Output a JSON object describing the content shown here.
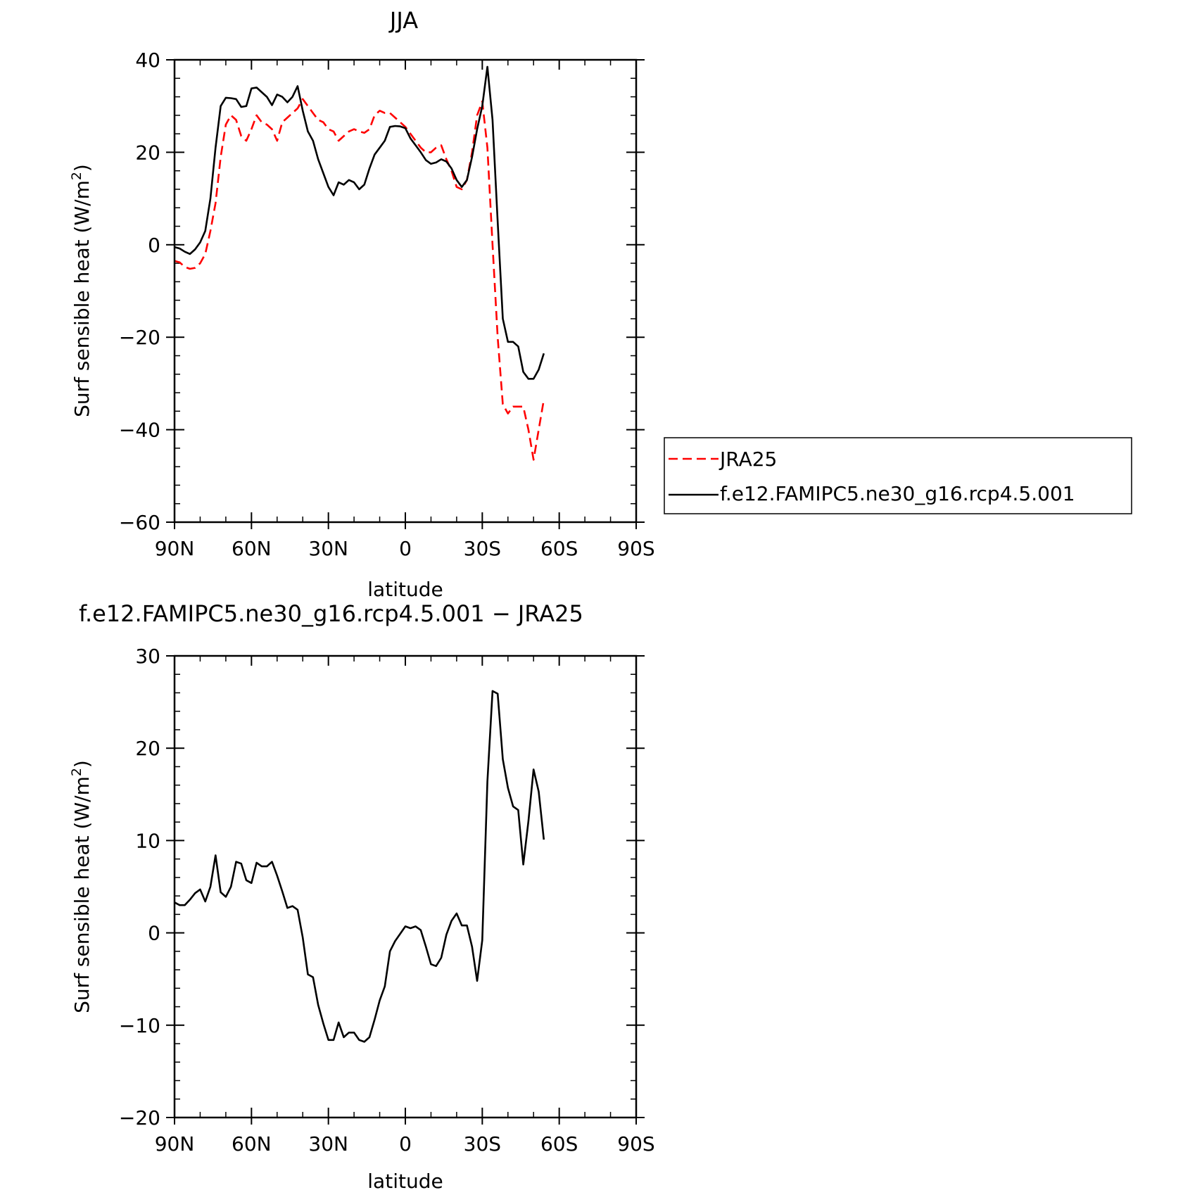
{
  "chart_data": [
    {
      "type": "line",
      "title": "JJA",
      "xlabel": "latitude",
      "ylabel_main": "Surf sensible heat (W/m",
      "ylabel_sup": "2",
      "ylabel_end": ")",
      "xlim": [
        90,
        -90
      ],
      "ylim": [
        -60,
        40
      ],
      "xticks": [
        90,
        60,
        30,
        0,
        -30,
        -60,
        -90
      ],
      "xtick_labels": [
        "90N",
        "60N",
        "30N",
        "0",
        "30S",
        "60S",
        "90S"
      ],
      "yticks": [
        -60,
        -40,
        -20,
        0,
        20,
        40
      ],
      "ytick_labels": [
        "−60",
        "−40",
        "−20",
        "0",
        "20",
        "40"
      ],
      "legend_position": "right",
      "series": [
        {
          "name": "JRA25",
          "color": "#ff0000",
          "dash": "dashed",
          "points": [
            [
              90,
              -3.5
            ],
            [
              88,
              -3.8
            ],
            [
              86,
              -4.8
            ],
            [
              84,
              -5.2
            ],
            [
              82,
              -5
            ],
            [
              80,
              -4
            ],
            [
              78,
              -2
            ],
            [
              76,
              3
            ],
            [
              74,
              9
            ],
            [
              72,
              19
            ],
            [
              70,
              26
            ],
            [
              68,
              28
            ],
            [
              66,
              27
            ],
            [
              64,
              23.5
            ],
            [
              62,
              22.5
            ],
            [
              60,
              25
            ],
            [
              58,
              28
            ],
            [
              56,
              26.5
            ],
            [
              54,
              26
            ],
            [
              52,
              25
            ],
            [
              50,
              22.5
            ],
            [
              48,
              26.5
            ],
            [
              46,
              27.5
            ],
            [
              44,
              28.5
            ],
            [
              42,
              29.5
            ],
            [
              40,
              31.5
            ],
            [
              38,
              30
            ],
            [
              36,
              28.5
            ],
            [
              34,
              27
            ],
            [
              32,
              26.5
            ],
            [
              30,
              25
            ],
            [
              28,
              24.5
            ],
            [
              26,
              22.5
            ],
            [
              24,
              23.5
            ],
            [
              22,
              24.5
            ],
            [
              20,
              25
            ],
            [
              18,
              24.5
            ],
            [
              16,
              24.2
            ],
            [
              14,
              25
            ],
            [
              12,
              28
            ],
            [
              10,
              29
            ],
            [
              8,
              28.5
            ],
            [
              6,
              28.5
            ],
            [
              4,
              27.5
            ],
            [
              2,
              26.5
            ],
            [
              0,
              25.5
            ],
            [
              -2,
              24
            ],
            [
              -4,
              22.5
            ],
            [
              -6,
              21
            ],
            [
              -8,
              20
            ],
            [
              -10,
              20
            ],
            [
              -12,
              21
            ],
            [
              -14,
              21.5
            ],
            [
              -16,
              18.5
            ],
            [
              -18,
              16
            ],
            [
              -20,
              12.5
            ],
            [
              -22,
              12
            ],
            [
              -24,
              14
            ],
            [
              -26,
              20
            ],
            [
              -28,
              28
            ],
            [
              -30,
              31
            ],
            [
              -32,
              21
            ],
            [
              -34,
              0
            ],
            [
              -36,
              -20
            ],
            [
              -38,
              -34.5
            ],
            [
              -40,
              -36.5
            ],
            [
              -42,
              -35
            ],
            [
              -44,
              -35
            ],
            [
              -46,
              -35
            ],
            [
              -48,
              -40
            ],
            [
              -50,
              -46.5
            ],
            [
              -52,
              -40
            ],
            [
              -54,
              -33.5
            ]
          ]
        },
        {
          "name": "f.e12.FAMIPC5.ne30_g16.rcp4.5.001",
          "color": "#000000",
          "dash": "solid",
          "points": [
            [
              90,
              -0.5
            ],
            [
              88,
              -0.8
            ],
            [
              86,
              -1.5
            ],
            [
              84,
              -2
            ],
            [
              82,
              -1
            ],
            [
              80,
              0.5
            ],
            [
              78,
              3
            ],
            [
              76,
              10
            ],
            [
              74,
              21
            ],
            [
              72,
              30
            ],
            [
              70,
              31.8
            ],
            [
              68,
              31.7
            ],
            [
              66,
              31.5
            ],
            [
              64,
              29.8
            ],
            [
              62,
              30
            ],
            [
              60,
              33.8
            ],
            [
              58,
              34
            ],
            [
              56,
              33
            ],
            [
              54,
              32
            ],
            [
              52,
              30.2
            ],
            [
              50,
              32.5
            ],
            [
              48,
              32
            ],
            [
              46,
              30.8
            ],
            [
              44,
              32
            ],
            [
              42,
              34.3
            ],
            [
              40,
              29
            ],
            [
              38,
              24.5
            ],
            [
              36,
              22.5
            ],
            [
              34,
              18.5
            ],
            [
              32,
              15.5
            ],
            [
              30,
              12.5
            ],
            [
              28,
              10.7
            ],
            [
              26,
              13.5
            ],
            [
              24,
              13
            ],
            [
              22,
              14
            ],
            [
              20,
              13.5
            ],
            [
              18,
              12
            ],
            [
              16,
              13
            ],
            [
              14,
              16.5
            ],
            [
              12,
              19.5
            ],
            [
              10,
              21
            ],
            [
              8,
              22.5
            ],
            [
              6,
              25.5
            ],
            [
              4,
              25.7
            ],
            [
              2,
              25.6
            ],
            [
              0,
              25.2
            ],
            [
              -2,
              23
            ],
            [
              -4,
              21.5
            ],
            [
              -6,
              20
            ],
            [
              -8,
              18.3
            ],
            [
              -10,
              17.5
            ],
            [
              -12,
              17.8
            ],
            [
              -14,
              18.5
            ],
            [
              -16,
              18
            ],
            [
              -18,
              16.5
            ],
            [
              -20,
              14
            ],
            [
              -22,
              12.5
            ],
            [
              -24,
              14
            ],
            [
              -26,
              19
            ],
            [
              -28,
              25
            ],
            [
              -30,
              30
            ],
            [
              -32,
              38.5
            ],
            [
              -34,
              27
            ],
            [
              -36,
              5
            ],
            [
              -38,
              -16
            ],
            [
              -40,
              -21
            ],
            [
              -42,
              -21
            ],
            [
              -44,
              -22
            ],
            [
              -46,
              -27.5
            ],
            [
              -48,
              -29
            ],
            [
              -50,
              -29
            ],
            [
              -52,
              -27
            ],
            [
              -54,
              -23.5
            ]
          ]
        }
      ]
    },
    {
      "type": "line",
      "title": "f.e12.FAMIPC5.ne30_g16.rcp4.5.001 − JRA25",
      "xlabel": "latitude",
      "ylabel_main": "Surf sensible heat (W/m",
      "ylabel_sup": "2",
      "ylabel_end": ")",
      "xlim": [
        90,
        -90
      ],
      "ylim": [
        -20,
        30
      ],
      "xticks": [
        90,
        60,
        30,
        0,
        -30,
        -60,
        -90
      ],
      "xtick_labels": [
        "90N",
        "60N",
        "30N",
        "0",
        "30S",
        "60S",
        "90S"
      ],
      "yticks": [
        -20,
        -10,
        0,
        10,
        20,
        30
      ],
      "ytick_labels": [
        "−20",
        "−10",
        "0",
        "10",
        "20",
        "30"
      ],
      "series": [
        {
          "color": "#000000",
          "dash": "solid",
          "points": [
            [
              90,
              3.3
            ],
            [
              88,
              3
            ],
            [
              86,
              3
            ],
            [
              84,
              3.6
            ],
            [
              82,
              4.3
            ],
            [
              80,
              4.7
            ],
            [
              78,
              3.4
            ],
            [
              76,
              5
            ],
            [
              74,
              8.4
            ],
            [
              72,
              4.4
            ],
            [
              70,
              3.9
            ],
            [
              68,
              5
            ],
            [
              66,
              7.7
            ],
            [
              64,
              7.5
            ],
            [
              62,
              5.7
            ],
            [
              60,
              5.4
            ],
            [
              58,
              7.6
            ],
            [
              56,
              7.2
            ],
            [
              54,
              7.2
            ],
            [
              52,
              7.7
            ],
            [
              50,
              6.2
            ],
            [
              48,
              4.5
            ],
            [
              46,
              2.7
            ],
            [
              44,
              2.9
            ],
            [
              42,
              2.5
            ],
            [
              40,
              -0.5
            ],
            [
              38,
              -4.5
            ],
            [
              36,
              -4.8
            ],
            [
              34,
              -7.8
            ],
            [
              32,
              -9.8
            ],
            [
              30,
              -11.6
            ],
            [
              28,
              -11.6
            ],
            [
              26,
              -9.7
            ],
            [
              24,
              -11.3
            ],
            [
              22,
              -10.8
            ],
            [
              20,
              -10.8
            ],
            [
              18,
              -11.6
            ],
            [
              16,
              -11.8
            ],
            [
              14,
              -11.3
            ],
            [
              12,
              -9.4
            ],
            [
              10,
              -7.3
            ],
            [
              8,
              -5.8
            ],
            [
              6,
              -2
            ],
            [
              4,
              -0.9
            ],
            [
              2,
              -0.1
            ],
            [
              0,
              0.7
            ],
            [
              -2,
              0.5
            ],
            [
              -4,
              0.7
            ],
            [
              -6,
              0.3
            ],
            [
              -8,
              -1.5
            ],
            [
              -10,
              -3.4
            ],
            [
              -12,
              -3.6
            ],
            [
              -14,
              -2.7
            ],
            [
              -16,
              -0.2
            ],
            [
              -18,
              1.3
            ],
            [
              -20,
              2.1
            ],
            [
              -22,
              0.8
            ],
            [
              -24,
              0.8
            ],
            [
              -26,
              -1.5
            ],
            [
              -28,
              -5.2
            ],
            [
              -30,
              -0.8
            ],
            [
              -32,
              16.4
            ],
            [
              -34,
              26.2
            ],
            [
              -36,
              25.9
            ],
            [
              -38,
              18.8
            ],
            [
              -40,
              15.7
            ],
            [
              -42,
              13.7
            ],
            [
              -44,
              13.3
            ],
            [
              -46,
              7.4
            ],
            [
              -48,
              12.1
            ],
            [
              -50,
              17.7
            ],
            [
              -52,
              15.3
            ],
            [
              -54,
              10.1
            ]
          ]
        }
      ]
    }
  ]
}
